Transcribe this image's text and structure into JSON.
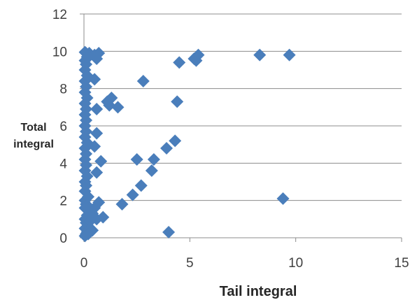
{
  "chart_data": {
    "type": "scatter",
    "title": "",
    "xlabel": "Tail integral",
    "ylabel_lines": [
      "Total",
      "integral"
    ],
    "xlim": [
      0,
      15
    ],
    "ylim": [
      0,
      12
    ],
    "x_ticks": [
      0,
      5,
      10,
      15
    ],
    "y_ticks": [
      0,
      2,
      4,
      6,
      8,
      10,
      12
    ],
    "grid": "horizontal",
    "legend": "none",
    "marker": "diamond",
    "color": "#4a7ebb",
    "series": [
      {
        "points": [
          [
            0.05,
            0.1
          ],
          [
            0.1,
            0.2
          ],
          [
            0.15,
            0.3
          ],
          [
            0.05,
            0.5
          ],
          [
            0.2,
            0.6
          ],
          [
            0.1,
            0.8
          ],
          [
            0.3,
            0.5
          ],
          [
            0.05,
            1.0
          ],
          [
            0.15,
            1.2
          ],
          [
            0.25,
            1.4
          ],
          [
            0.05,
            1.6
          ],
          [
            0.1,
            1.8
          ],
          [
            0.05,
            2.0
          ],
          [
            0.2,
            2.2
          ],
          [
            0.05,
            2.5
          ],
          [
            0.1,
            2.8
          ],
          [
            0.05,
            3.0
          ],
          [
            0.15,
            3.3
          ],
          [
            0.05,
            3.6
          ],
          [
            0.1,
            3.9
          ],
          [
            0.05,
            4.2
          ],
          [
            0.1,
            4.5
          ],
          [
            0.05,
            4.8
          ],
          [
            0.15,
            5.1
          ],
          [
            0.05,
            5.4
          ],
          [
            0.1,
            5.7
          ],
          [
            0.05,
            6.0
          ],
          [
            0.1,
            6.3
          ],
          [
            0.05,
            6.6
          ],
          [
            0.1,
            6.9
          ],
          [
            0.05,
            7.2
          ],
          [
            0.15,
            7.5
          ],
          [
            0.05,
            7.8
          ],
          [
            0.1,
            8.1
          ],
          [
            0.05,
            8.4
          ],
          [
            0.15,
            8.7
          ],
          [
            0.05,
            9.0
          ],
          [
            0.1,
            9.3
          ],
          [
            0.05,
            9.5
          ],
          [
            0.15,
            9.7
          ],
          [
            0.1,
            9.9
          ],
          [
            0.25,
            9.9
          ],
          [
            0.3,
            9.8
          ],
          [
            0.05,
            9.95
          ],
          [
            0.5,
            9.8
          ],
          [
            0.7,
            9.9
          ],
          [
            0.6,
            9.6
          ],
          [
            0.5,
            8.5
          ],
          [
            0.6,
            6.9
          ],
          [
            0.6,
            5.6
          ],
          [
            0.5,
            4.9
          ],
          [
            0.8,
            4.1
          ],
          [
            0.6,
            3.5
          ],
          [
            0.5,
            1.6
          ],
          [
            0.7,
            1.9
          ],
          [
            0.6,
            1.0
          ],
          [
            0.9,
            1.1
          ],
          [
            0.4,
            1.3
          ],
          [
            0.3,
            0.9
          ],
          [
            0.4,
            0.4
          ],
          [
            0.2,
            0.2
          ],
          [
            1.1,
            7.3
          ],
          [
            1.3,
            7.5
          ],
          [
            1.2,
            7.1
          ],
          [
            1.6,
            7.0
          ],
          [
            2.8,
            8.4
          ],
          [
            4.5,
            9.4
          ],
          [
            5.2,
            9.6
          ],
          [
            5.4,
            9.8
          ],
          [
            5.3,
            9.5
          ],
          [
            8.3,
            9.8
          ],
          [
            9.7,
            9.8
          ],
          [
            4.4,
            7.3
          ],
          [
            4.3,
            5.2
          ],
          [
            3.9,
            4.8
          ],
          [
            3.3,
            4.2
          ],
          [
            3.2,
            3.6
          ],
          [
            2.5,
            4.2
          ],
          [
            2.7,
            2.8
          ],
          [
            2.3,
            2.3
          ],
          [
            1.8,
            1.8
          ],
          [
            9.4,
            2.1
          ],
          [
            4.0,
            0.3
          ]
        ]
      }
    ]
  }
}
